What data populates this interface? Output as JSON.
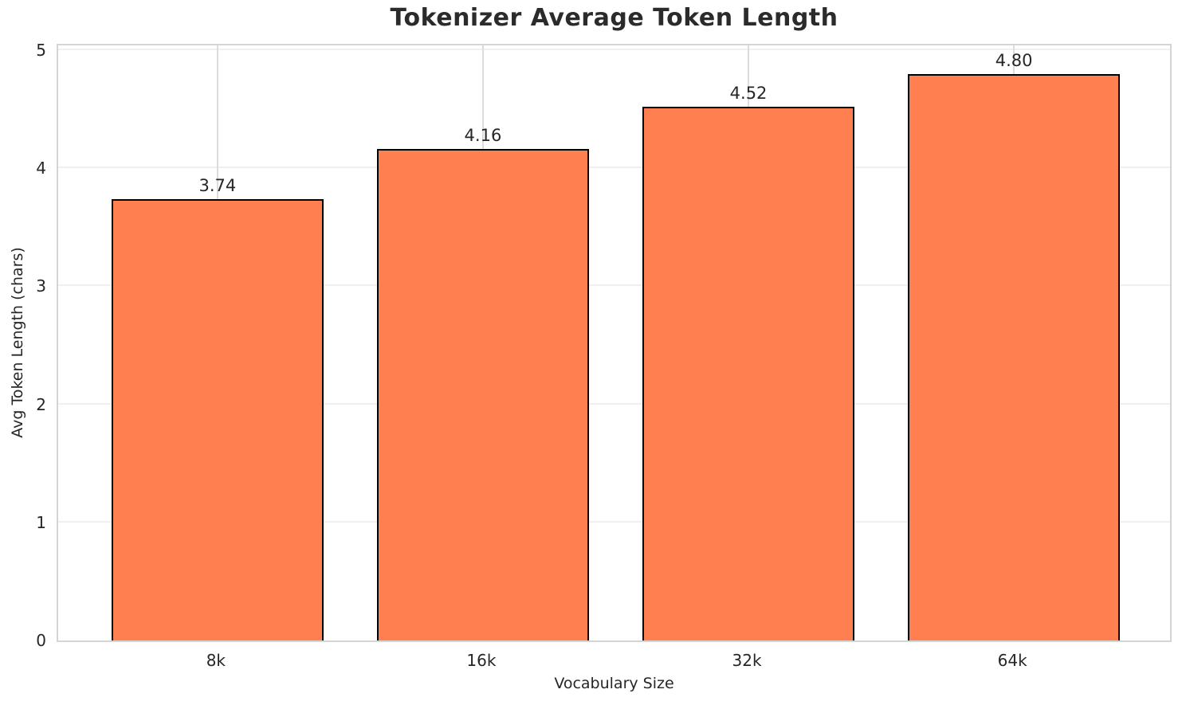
{
  "title": "Tokenizer Average Token Length",
  "chart_data": {
    "type": "bar",
    "title": "Tokenizer Average Token Length",
    "categories": [
      "8k",
      "16k",
      "32k",
      "64k"
    ],
    "values": [
      3.74,
      4.16,
      4.52,
      4.8
    ],
    "bar_value_labels": [
      "3.74",
      "4.16",
      "4.52",
      "4.80"
    ],
    "xlabel": "Vocabulary Size",
    "ylabel": "Avg Token Length (chars)",
    "yticks": [
      0,
      1,
      2,
      3,
      4,
      5
    ],
    "ytick_labels": [
      "0",
      "1",
      "2",
      "3",
      "4",
      "5"
    ],
    "ylim": [
      0,
      5.04
    ],
    "grid": "on",
    "legend": "none",
    "bar_color": "#ff7f50",
    "bar_edge_color": "#000000",
    "grid_color_horizontal": "#f0f0f0",
    "grid_color_vertical": "#dcdcdc",
    "spine_color": "#d4d4d4",
    "text_color": "#262626"
  }
}
